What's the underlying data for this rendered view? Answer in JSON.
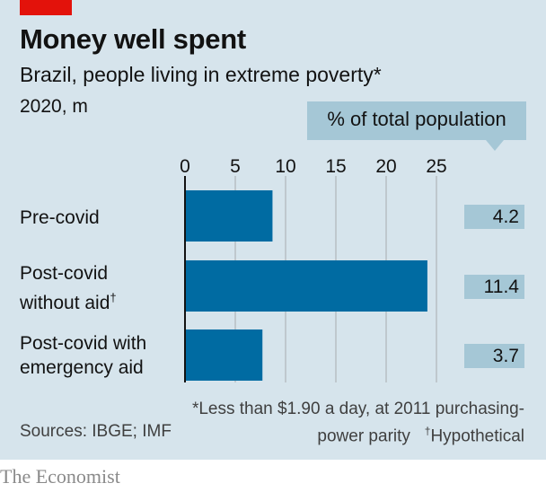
{
  "header": {
    "title": "Money well spent",
    "subtitle": "Brazil, people living in extreme poverty*",
    "unit": "2020, m",
    "pct_header": "% of total population"
  },
  "chart_data": {
    "type": "bar",
    "orientation": "horizontal",
    "categories": [
      "Pre-covid",
      "Post-covid without aid†",
      "Post-covid with emergency aid"
    ],
    "values": [
      8.7,
      24.1,
      7.7
    ],
    "pct_of_population": [
      "4.2",
      "11.4",
      "3.7"
    ],
    "xlim": [
      0,
      25
    ],
    "xticks": [
      0,
      5,
      10,
      15,
      20,
      25
    ],
    "grid": true,
    "bar_color": "#006ba2"
  },
  "labels": {
    "cat0_line1": "Pre-covid",
    "cat1_line1": "Post-covid",
    "cat1_line2": "without aid",
    "cat1_mark": "†",
    "cat2_line1": "Post-covid with",
    "cat2_line2": "emergency aid"
  },
  "footnote": {
    "line1": "*Less than $1.90 a day, at 2011 purchasing-",
    "line2_a": "power parity",
    "line2_mark": "†",
    "line2_b": "Hypothetical"
  },
  "source": "Sources: IBGE; IMF",
  "brand": "The Economist",
  "colors": {
    "panel": "#d6e4ec",
    "accent_red": "#e3120b",
    "pct_box": "#a5c7d6"
  }
}
